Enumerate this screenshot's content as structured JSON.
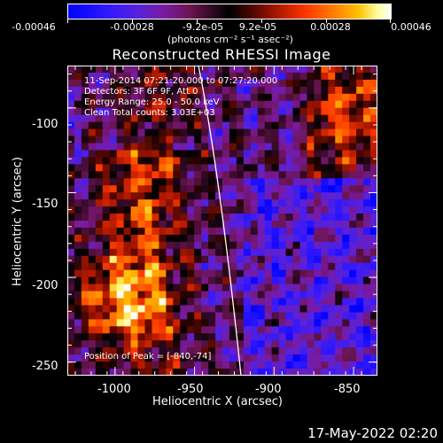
{
  "colorbar": {
    "tick_labels": [
      "-0.00046",
      "-0.00028",
      "-9.2e-05",
      "9.2e-05",
      "0.00028",
      "0.00046"
    ],
    "unit_label": "(photons cm⁻² s⁻¹ asec⁻²)",
    "min": -0.00046,
    "max": 0.00046
  },
  "plot": {
    "title": "Reconstructed RHESSI Image",
    "xlabel": "Heliocentric X (arcsec)",
    "ylabel": "Heliocentric Y (arcsec)",
    "x_ticks": [
      "-1000",
      "-950",
      "-900",
      "-850"
    ],
    "y_ticks": [
      "-100",
      "-150",
      "-200",
      "-250"
    ],
    "xlim": [
      -1030,
      -835
    ],
    "ylim": [
      -258,
      -75
    ]
  },
  "info": {
    "time_range": "11-Sep-2014 07:21:20.000 to 07:27:20.000",
    "detectors": "Detectors: 3F 6F 9F, Att 0",
    "energy_range": "Energy Range: 25.0 - 50.0 keV",
    "algorithm": "Clean     Total counts: 3.03E+03",
    "peak": "Position of Peak = [-840,-74]"
  },
  "footer": {
    "timestamp": "17-May-2022 02:20"
  },
  "colors": {
    "background": "#000000",
    "axes": "#ffffff",
    "limb": "#ffffff"
  }
}
